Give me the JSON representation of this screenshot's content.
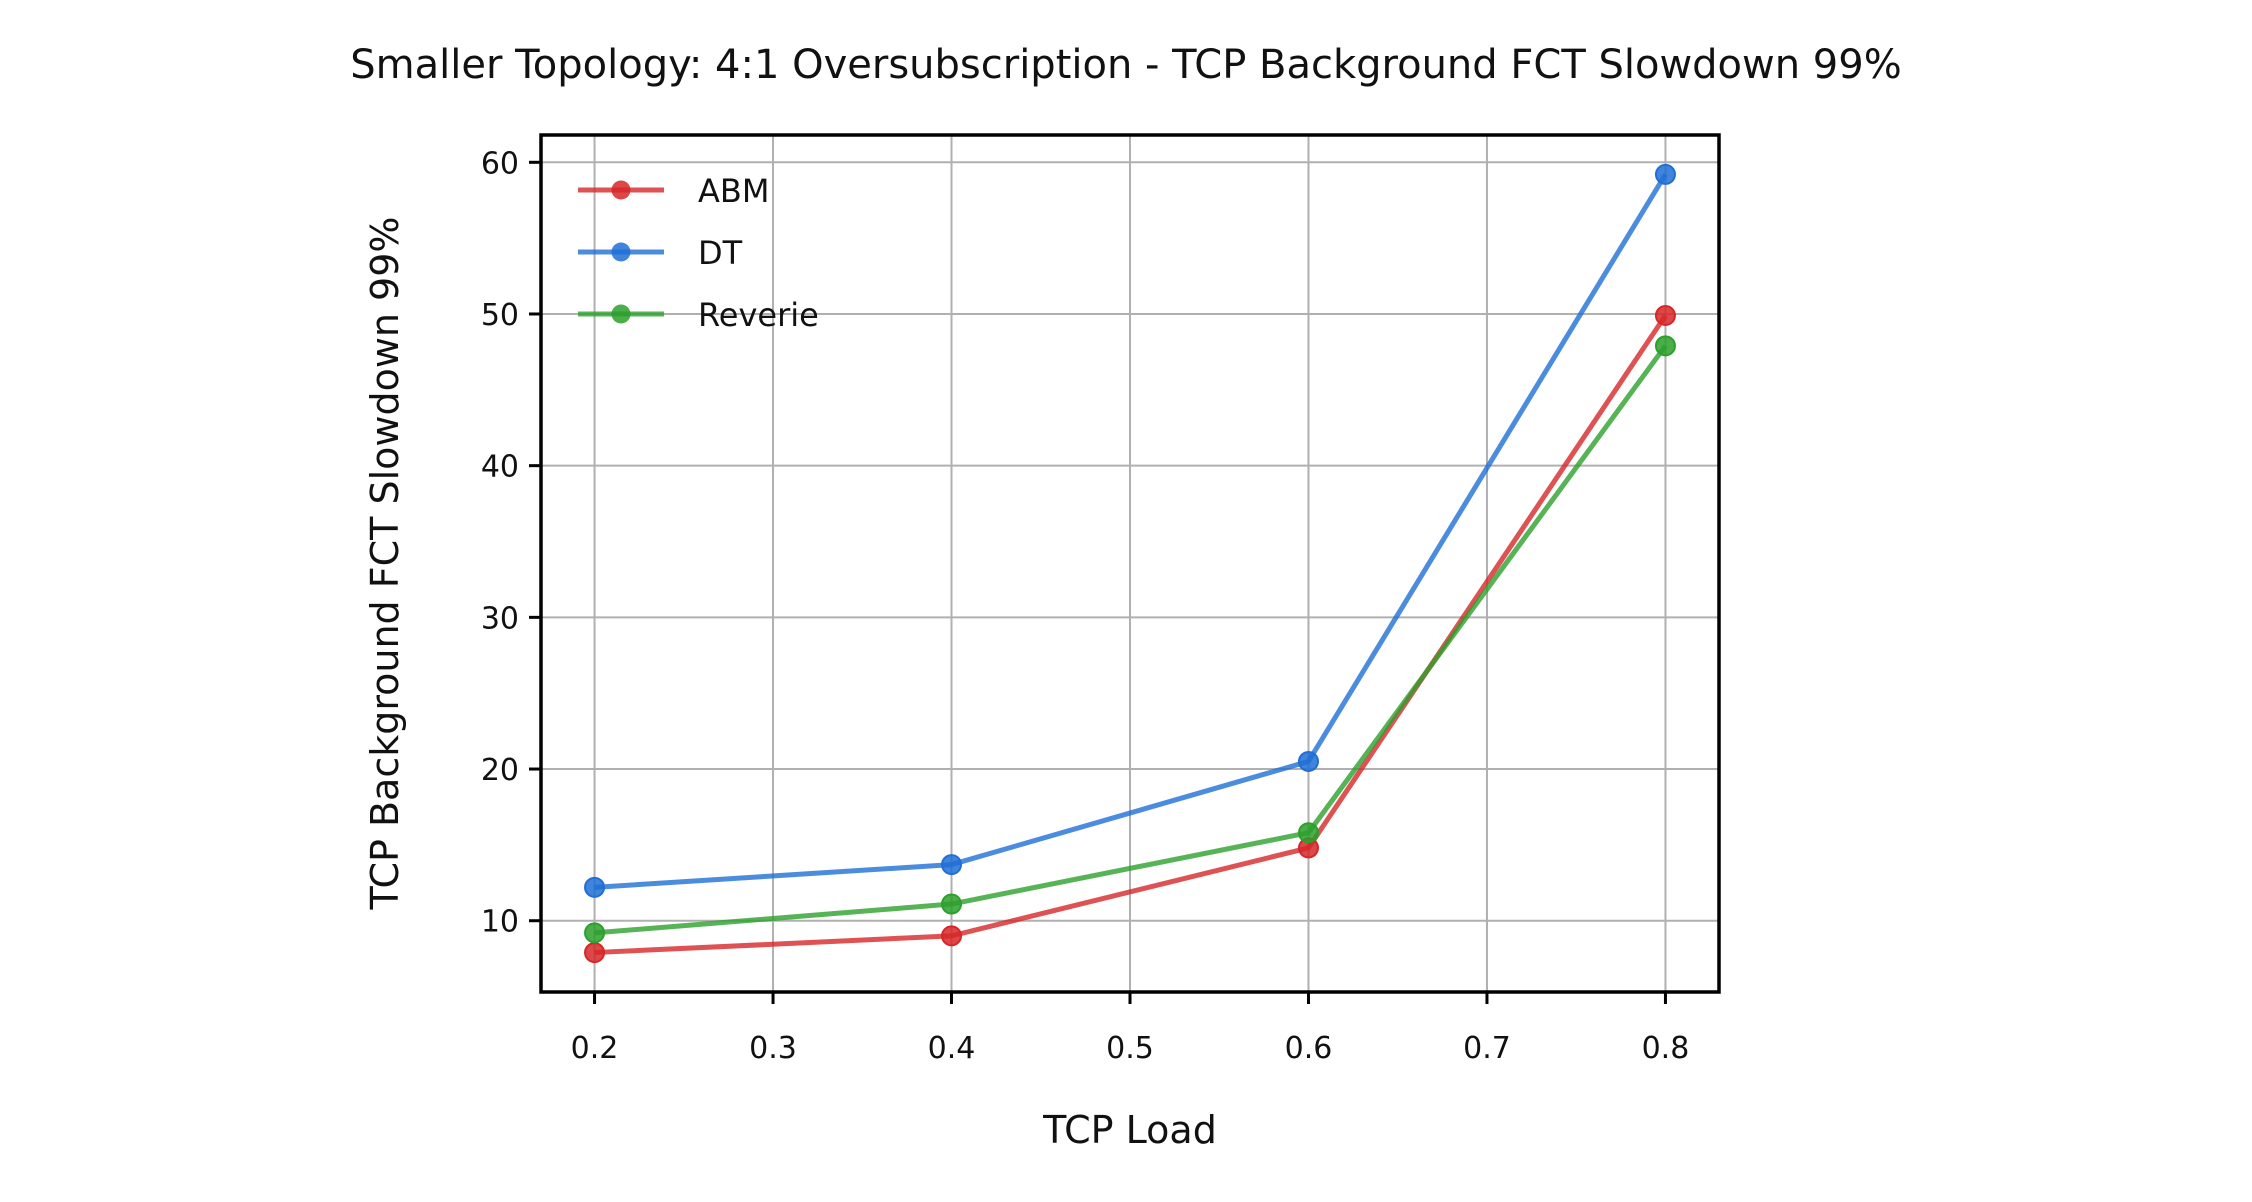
{
  "chart_data": {
    "type": "line",
    "title": "Smaller Topology: 4:1 Oversubscription - TCP Background FCT Slowdown 99%",
    "xlabel": "TCP Load",
    "ylabel": "TCP Background FCT Slowdown 99%",
    "xlim": [
      0.17,
      0.83
    ],
    "ylim": [
      5.3,
      61.8
    ],
    "xticks": [
      0.2,
      0.3,
      0.4,
      0.5,
      0.6,
      0.7,
      0.8
    ],
    "xtick_labels": [
      "0.2",
      "0.3",
      "0.4",
      "0.5",
      "0.6",
      "0.7",
      "0.8"
    ],
    "yticks": [
      10,
      20,
      30,
      40,
      50,
      60
    ],
    "ytick_labels": [
      "10",
      "20",
      "30",
      "40",
      "50",
      "60"
    ],
    "grid": true,
    "legend_position": "top-left",
    "x": [
      0.2,
      0.4,
      0.6,
      0.8
    ],
    "series": [
      {
        "name": "ABM",
        "color": "#d62728",
        "values": [
          7.9,
          9.0,
          14.8,
          49.9
        ]
      },
      {
        "name": "DT",
        "color": "#1f6fd6",
        "values": [
          12.2,
          13.7,
          20.5,
          59.2
        ]
      },
      {
        "name": "Reverie",
        "color": "#2ca02c",
        "values": [
          9.2,
          11.1,
          15.8,
          47.9
        ]
      }
    ]
  }
}
